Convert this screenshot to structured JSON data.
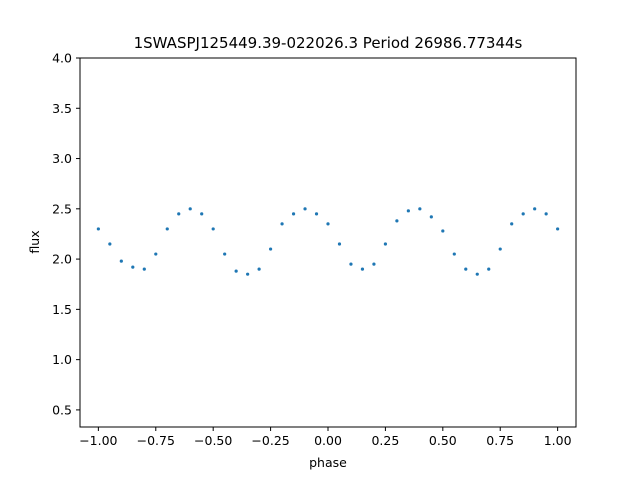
{
  "chart_data": {
    "type": "scatter",
    "title": "1SWASPJ125449.39-022026.3 Period 26986.77344s",
    "xlabel": "phase",
    "ylabel": "flux",
    "xlim": [
      -1.08,
      1.08
    ],
    "ylim": [
      0.33,
      4.0
    ],
    "xticks": [
      -1.0,
      -0.75,
      -0.5,
      -0.25,
      0.0,
      0.25,
      0.5,
      0.75,
      1.0
    ],
    "xtick_labels": [
      "−1.00",
      "−0.75",
      "−0.50",
      "−0.25",
      "0.00",
      "0.25",
      "0.50",
      "0.75",
      "1.00"
    ],
    "yticks": [
      0.5,
      1.0,
      1.5,
      2.0,
      2.5,
      3.0,
      3.5,
      4.0
    ],
    "ytick_labels": [
      "0.5",
      "1.0",
      "1.5",
      "2.0",
      "2.5",
      "3.0",
      "3.5",
      "4.0"
    ],
    "grid": false,
    "marker_color": "#1f77b4",
    "series": [
      {
        "x": [
          -1.0,
          -0.95,
          -0.9,
          -0.85,
          -0.8,
          -0.75,
          -0.7,
          -0.65,
          -0.6,
          -0.55,
          -0.5,
          -0.45,
          -0.4,
          -0.35,
          -0.3,
          -0.25,
          -0.2,
          -0.15,
          -0.1,
          -0.05,
          0.0,
          0.05,
          0.1,
          0.15,
          0.2,
          0.25,
          0.3,
          0.35,
          0.4,
          0.45,
          0.5,
          0.55,
          0.6,
          0.65,
          0.7,
          0.75,
          0.8,
          0.85,
          0.9,
          0.95,
          1.0
        ],
        "y": [
          2.3,
          2.15,
          1.98,
          1.92,
          1.9,
          2.05,
          2.3,
          2.45,
          2.5,
          2.45,
          2.3,
          2.05,
          1.88,
          1.85,
          1.9,
          2.1,
          2.35,
          2.45,
          2.5,
          2.45,
          2.35,
          2.15,
          1.95,
          1.9,
          1.95,
          2.15,
          2.38,
          2.48,
          2.5,
          2.42,
          2.28,
          2.05,
          1.9,
          1.85,
          1.9,
          2.1,
          2.35,
          2.45,
          2.5,
          2.45,
          2.3
        ]
      }
    ]
  }
}
